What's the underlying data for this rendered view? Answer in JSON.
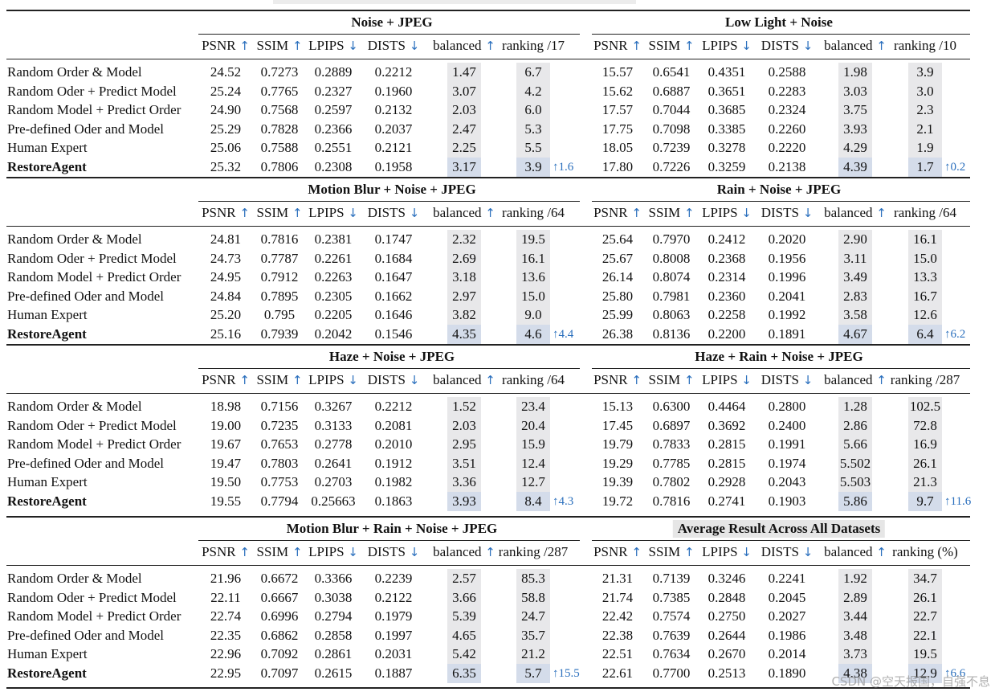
{
  "colors": {
    "arrow": "#2a6fbd",
    "shade": "#e8e8ea",
    "shade_highlight": "#d4dcea",
    "rule": "#222222"
  },
  "icons": {
    "up": "up-arrow-icon",
    "down": "down-arrow-icon"
  },
  "row_labels": [
    "Random Order & Model",
    "Random Oder + Predict Model",
    "Random Model + Predict Order",
    "Pre-defined Oder and Model",
    "Human Expert",
    "RestoreAgent"
  ],
  "metric_names": [
    "PSNR",
    "SSIM",
    "LPIPS",
    "DISTS",
    "balanced"
  ],
  "watermark": "CSDN @空天报国，自强不息",
  "blocks": [
    {
      "left": {
        "title": "Noise + JPEG",
        "ranking_label": "ranking /17",
        "rows": [
          [
            "24.52",
            "0.7273",
            "0.2889",
            "0.2212",
            "1.47",
            "6.7"
          ],
          [
            "25.24",
            "0.7765",
            "0.2327",
            "0.1960",
            "3.07",
            "4.2"
          ],
          [
            "24.90",
            "0.7568",
            "0.2597",
            "0.2132",
            "2.03",
            "6.0"
          ],
          [
            "25.29",
            "0.7828",
            "0.2366",
            "0.2037",
            "2.47",
            "5.3"
          ],
          [
            "25.06",
            "0.7588",
            "0.2551",
            "0.2121",
            "2.25",
            "5.5"
          ],
          [
            "25.32",
            "0.7806",
            "0.2308",
            "0.1958",
            "3.17",
            "3.9"
          ]
        ],
        "gain": "↑1.6"
      },
      "right": {
        "title": "Low Light + Noise",
        "ranking_label": "ranking /10",
        "rows": [
          [
            "15.57",
            "0.6541",
            "0.4351",
            "0.2588",
            "1.98",
            "3.9"
          ],
          [
            "15.62",
            "0.6887",
            "0.3651",
            "0.2283",
            "3.03",
            "3.0"
          ],
          [
            "17.57",
            "0.7044",
            "0.3685",
            "0.2324",
            "3.75",
            "2.3"
          ],
          [
            "17.75",
            "0.7098",
            "0.3385",
            "0.2260",
            "3.93",
            "2.1"
          ],
          [
            "18.05",
            "0.7239",
            "0.3278",
            "0.2220",
            "4.29",
            "1.9"
          ],
          [
            "17.80",
            "0.7226",
            "0.3259",
            "0.2138",
            "4.39",
            "1.7"
          ]
        ],
        "gain": "↑0.2"
      }
    },
    {
      "left": {
        "title": "Motion Blur + Noise + JPEG",
        "ranking_label": "ranking /64",
        "rows": [
          [
            "24.81",
            "0.7816",
            "0.2381",
            "0.1747",
            "2.32",
            "19.5"
          ],
          [
            "24.73",
            "0.7787",
            "0.2261",
            "0.1684",
            "2.69",
            "16.1"
          ],
          [
            "24.95",
            "0.7912",
            "0.2263",
            "0.1647",
            "3.18",
            "13.6"
          ],
          [
            "24.84",
            "0.7895",
            "0.2305",
            "0.1662",
            "2.97",
            "15.0"
          ],
          [
            "25.20",
            "0.795",
            "0.2205",
            "0.1646",
            "3.82",
            "9.0"
          ],
          [
            "25.16",
            "0.7939",
            "0.2042",
            "0.1546",
            "4.35",
            "4.6"
          ]
        ],
        "gain": "↑4.4"
      },
      "right": {
        "title": "Rain + Noise + JPEG",
        "ranking_label": "ranking /64",
        "rows": [
          [
            "25.64",
            "0.7970",
            "0.2412",
            "0.2020",
            "2.90",
            "16.1"
          ],
          [
            "25.67",
            "0.8008",
            "0.2368",
            "0.1956",
            "3.11",
            "15.0"
          ],
          [
            "26.14",
            "0.8074",
            "0.2314",
            "0.1996",
            "3.49",
            "13.3"
          ],
          [
            "25.80",
            "0.7981",
            "0.2360",
            "0.2041",
            "2.83",
            "16.7"
          ],
          [
            "25.99",
            "0.8063",
            "0.2258",
            "0.1992",
            "3.58",
            "12.6"
          ],
          [
            "26.38",
            "0.8136",
            "0.2200",
            "0.1891",
            "4.67",
            "6.4"
          ]
        ],
        "gain": "↑6.2"
      }
    },
    {
      "left": {
        "title": "Haze + Noise + JPEG",
        "ranking_label": "ranking /64",
        "rows": [
          [
            "18.98",
            "0.7156",
            "0.3267",
            "0.2212",
            "1.52",
            "23.4"
          ],
          [
            "19.00",
            "0.7235",
            "0.3133",
            "0.2081",
            "2.03",
            "20.4"
          ],
          [
            "19.67",
            "0.7653",
            "0.2778",
            "0.2010",
            "2.95",
            "15.9"
          ],
          [
            "19.47",
            "0.7803",
            "0.2641",
            "0.1912",
            "3.51",
            "12.4"
          ],
          [
            "19.50",
            "0.7753",
            "0.2703",
            "0.1982",
            "3.36",
            "12.7"
          ],
          [
            "19.55",
            "0.7794",
            "0.25663",
            "0.1863",
            "3.93",
            "8.4"
          ]
        ],
        "gain": "↑4.3"
      },
      "right": {
        "title": "Haze + Rain + Noise + JPEG",
        "ranking_label": "ranking /287",
        "rows": [
          [
            "15.13",
            "0.6300",
            "0.4464",
            "0.2800",
            "1.28",
            "102.5"
          ],
          [
            "17.45",
            "0.6897",
            "0.3692",
            "0.2400",
            "2.86",
            "72.8"
          ],
          [
            "19.79",
            "0.7833",
            "0.2815",
            "0.1991",
            "5.66",
            "16.9"
          ],
          [
            "19.29",
            "0.7785",
            "0.2815",
            "0.1974",
            "5.502",
            "26.1"
          ],
          [
            "19.39",
            "0.7802",
            "0.2928",
            "0.2043",
            "5.503",
            "21.3"
          ],
          [
            "19.72",
            "0.7816",
            "0.2741",
            "0.1903",
            "5.86",
            "9.7"
          ]
        ],
        "gain": "↑11.6"
      }
    },
    {
      "left": {
        "title": "Motion Blur + Rain + Noise + JPEG",
        "ranking_label": "ranking /287",
        "rows": [
          [
            "21.96",
            "0.6672",
            "0.3366",
            "0.2239",
            "2.57",
            "85.3"
          ],
          [
            "22.11",
            "0.6667",
            "0.3038",
            "0.2122",
            "3.66",
            "58.8"
          ],
          [
            "22.74",
            "0.6996",
            "0.2794",
            "0.1979",
            "5.39",
            "24.7"
          ],
          [
            "22.35",
            "0.6862",
            "0.2858",
            "0.1997",
            "4.65",
            "35.7"
          ],
          [
            "22.96",
            "0.7092",
            "0.2861",
            "0.2031",
            "5.42",
            "21.2"
          ],
          [
            "22.95",
            "0.7097",
            "0.2615",
            "0.1887",
            "6.35",
            "5.7"
          ]
        ],
        "gain": "↑15.5"
      },
      "right": {
        "title": "Average Result Across All Datasets",
        "ranking_label": "ranking (%)",
        "rows": [
          [
            "21.31",
            "0.7139",
            "0.3246",
            "0.2241",
            "1.92",
            "34.7"
          ],
          [
            "21.74",
            "0.7385",
            "0.2848",
            "0.2045",
            "2.89",
            "26.1"
          ],
          [
            "22.42",
            "0.7574",
            "0.2750",
            "0.2027",
            "3.44",
            "22.7"
          ],
          [
            "22.38",
            "0.7639",
            "0.2644",
            "0.1986",
            "3.48",
            "22.1"
          ],
          [
            "22.51",
            "0.7634",
            "0.2670",
            "0.2014",
            "3.73",
            "19.5"
          ],
          [
            "22.61",
            "0.7700",
            "0.2513",
            "0.1890",
            "4.38",
            "12.9"
          ]
        ],
        "gain": "↑6.6"
      }
    }
  ]
}
